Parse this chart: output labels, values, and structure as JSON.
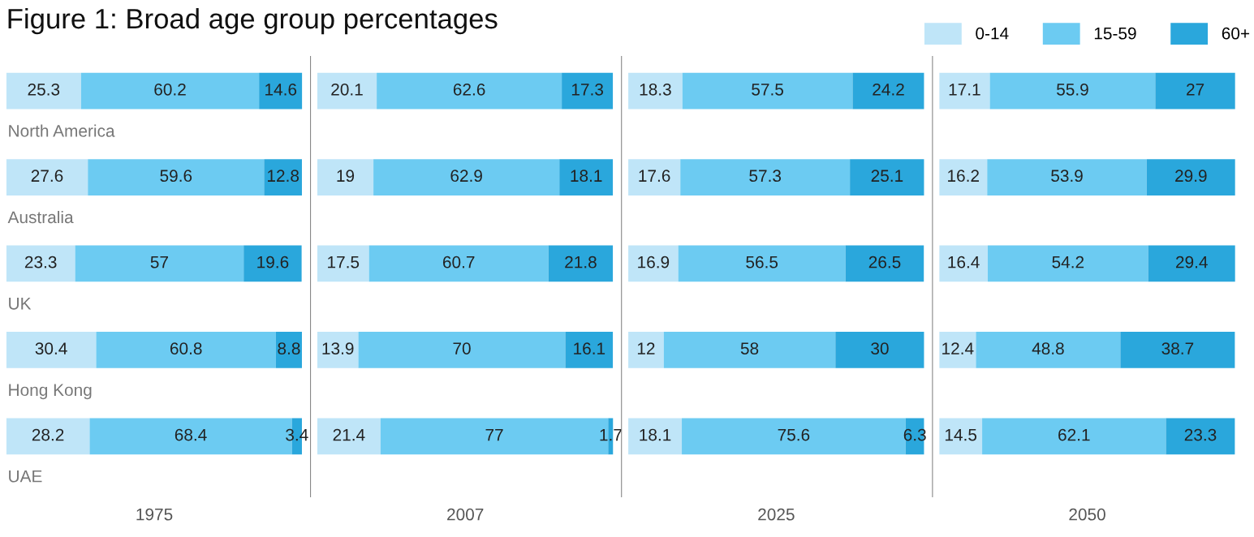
{
  "chart_data": [
    {
      "type": "bar",
      "orientation": "horizontal",
      "stacked": true,
      "title": "Figure 1: Broad age group percentages",
      "xlabel": "1975",
      "categories": [
        "North America",
        "Australia",
        "UK",
        "Hong Kong",
        "UAE"
      ],
      "data_labels": true,
      "tick_labels": false,
      "legend": false,
      "series": [
        {
          "color": "#bfe5f8",
          "values": [
            25.3,
            27.6,
            23.3,
            30.4,
            28.2
          ]
        },
        {
          "color": "#6ccbf2",
          "values": [
            60.2,
            59.6,
            57,
            60.8,
            68.4
          ]
        },
        {
          "color": "#2aa7dc",
          "values": [
            14.6,
            12.8,
            19.6,
            8.8,
            3.4
          ]
        }
      ]
    },
    {
      "type": "bar",
      "orientation": "horizontal",
      "stacked": true,
      "xlabel": "2007",
      "categories": [
        null,
        null,
        null,
        null,
        null
      ],
      "data_labels": true,
      "tick_labels": false,
      "legend": false,
      "series": [
        {
          "color": "#bfe5f8",
          "values": [
            20.1,
            19,
            17.5,
            13.9,
            21.4
          ]
        },
        {
          "color": "#6ccbf2",
          "values": [
            62.6,
            62.9,
            60.7,
            70,
            77
          ]
        },
        {
          "color": "#2aa7dc",
          "values": [
            17.3,
            18.1,
            21.8,
            16.1,
            1.7
          ]
        }
      ]
    },
    {
      "type": "bar",
      "orientation": "horizontal",
      "stacked": true,
      "xlabel": "2025",
      "categories": [
        null,
        null,
        null,
        null,
        null
      ],
      "data_labels": true,
      "tick_labels": false,
      "legend": false,
      "series": [
        {
          "color": "#bfe5f8",
          "values": [
            18.3,
            17.6,
            16.9,
            12,
            18.1
          ]
        },
        {
          "color": "#6ccbf2",
          "values": [
            57.5,
            57.3,
            56.5,
            58,
            75.6
          ]
        },
        {
          "color": "#2aa7dc",
          "values": [
            24.2,
            25.1,
            26.5,
            30,
            6.3
          ]
        }
      ]
    },
    {
      "type": "bar",
      "orientation": "horizontal",
      "stacked": true,
      "xlabel": "2050",
      "categories": [
        null,
        null,
        null,
        null,
        null
      ],
      "data_labels": true,
      "tick_labels": false,
      "legend": "top",
      "series": [
        {
          "name": "0-14",
          "color": "#bfe5f8",
          "values": [
            17.1,
            16.2,
            16.4,
            12.4,
            14.5
          ]
        },
        {
          "name": "15-59",
          "color": "#6ccbf2",
          "values": [
            55.9,
            53.9,
            54.2,
            48.8,
            62.1
          ]
        },
        {
          "name": "60+",
          "color": "#2aa7dc",
          "values": [
            27,
            29.9,
            29.4,
            38.7,
            23.3
          ]
        }
      ]
    }
  ]
}
